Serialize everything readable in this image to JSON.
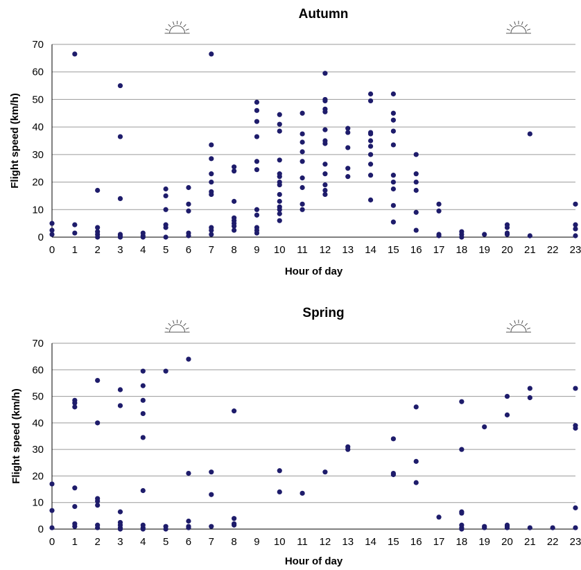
{
  "chart_data": [
    {
      "type": "scatter",
      "title": "Autumn",
      "xlabel": "Hour of day",
      "ylabel": "Flight speed (km/h)",
      "xlim": [
        0,
        23
      ],
      "ylim": [
        0,
        70
      ],
      "x_ticks": [
        "0",
        "1",
        "2",
        "3",
        "4",
        "5",
        "6",
        "7",
        "8",
        "9",
        "10",
        "11",
        "12",
        "13",
        "14",
        "15",
        "16",
        "17",
        "18",
        "19",
        "20",
        "21",
        "22",
        "23"
      ],
      "y_ticks": [
        "0",
        "10",
        "20",
        "30",
        "40",
        "50",
        "60",
        "70"
      ],
      "grid": true,
      "sun_marker_hours": [
        5.5,
        20.5
      ],
      "marker_color": "#1e1c6b",
      "points": [
        [
          0,
          5
        ],
        [
          0,
          2.5
        ],
        [
          0,
          1
        ],
        [
          1,
          66.5
        ],
        [
          1,
          4.5
        ],
        [
          1,
          1.5
        ],
        [
          2,
          17
        ],
        [
          2,
          3.5
        ],
        [
          2,
          2
        ],
        [
          2,
          1
        ],
        [
          2,
          0
        ],
        [
          3,
          55
        ],
        [
          3,
          36.5
        ],
        [
          3,
          14
        ],
        [
          3,
          1
        ],
        [
          3,
          0.5
        ],
        [
          3,
          0
        ],
        [
          4,
          1.5
        ],
        [
          4,
          0.5
        ],
        [
          4,
          0
        ],
        [
          5,
          17.5
        ],
        [
          5,
          15
        ],
        [
          5,
          10
        ],
        [
          5,
          4.5
        ],
        [
          5,
          3.5
        ],
        [
          5,
          0
        ],
        [
          6,
          18
        ],
        [
          6,
          12
        ],
        [
          6,
          9.5
        ],
        [
          6,
          1.5
        ],
        [
          6,
          0.5
        ],
        [
          7,
          66.5
        ],
        [
          7,
          33.5
        ],
        [
          7,
          28.5
        ],
        [
          7,
          23
        ],
        [
          7,
          20
        ],
        [
          7,
          16.5
        ],
        [
          7,
          15.5
        ],
        [
          7,
          3.5
        ],
        [
          7,
          2.5
        ],
        [
          7,
          1
        ],
        [
          8,
          25.5
        ],
        [
          8,
          24
        ],
        [
          8,
          13
        ],
        [
          8,
          7
        ],
        [
          8,
          6
        ],
        [
          8,
          5
        ],
        [
          8,
          4
        ],
        [
          8,
          2.5
        ],
        [
          9,
          49
        ],
        [
          9,
          46
        ],
        [
          9,
          42
        ],
        [
          9,
          36.5
        ],
        [
          9,
          27.5
        ],
        [
          9,
          24.5
        ],
        [
          9,
          10
        ],
        [
          9,
          8
        ],
        [
          9,
          3.5
        ],
        [
          9,
          2.5
        ],
        [
          9,
          1.5
        ],
        [
          10,
          44.5
        ],
        [
          10,
          41
        ],
        [
          10,
          38.5
        ],
        [
          10,
          28
        ],
        [
          10,
          23
        ],
        [
          10,
          22
        ],
        [
          10,
          20
        ],
        [
          10,
          19
        ],
        [
          10,
          15.5
        ],
        [
          10,
          13
        ],
        [
          10,
          11
        ],
        [
          10,
          10
        ],
        [
          10,
          8.5
        ],
        [
          10,
          6
        ],
        [
          11,
          45
        ],
        [
          11,
          37.5
        ],
        [
          11,
          34.5
        ],
        [
          11,
          31
        ],
        [
          11,
          27.5
        ],
        [
          11,
          21.5
        ],
        [
          11,
          18
        ],
        [
          11,
          12
        ],
        [
          11,
          10
        ],
        [
          12,
          59.5
        ],
        [
          12,
          50
        ],
        [
          12,
          49.5
        ],
        [
          12,
          46.5
        ],
        [
          12,
          45.5
        ],
        [
          12,
          39
        ],
        [
          12,
          35
        ],
        [
          12,
          34
        ],
        [
          12,
          26.5
        ],
        [
          12,
          23
        ],
        [
          12,
          19
        ],
        [
          12,
          17
        ],
        [
          12,
          15.5
        ],
        [
          13,
          39.5
        ],
        [
          13,
          38
        ],
        [
          13,
          32.5
        ],
        [
          13,
          25
        ],
        [
          13,
          22
        ],
        [
          14,
          52
        ],
        [
          14,
          49.5
        ],
        [
          14,
          38
        ],
        [
          14,
          37.5
        ],
        [
          14,
          35
        ],
        [
          14,
          33
        ],
        [
          14,
          30
        ],
        [
          14,
          26.5
        ],
        [
          14,
          22.5
        ],
        [
          14,
          13.5
        ],
        [
          15,
          52
        ],
        [
          15,
          45
        ],
        [
          15,
          42.5
        ],
        [
          15,
          38.5
        ],
        [
          15,
          33.5
        ],
        [
          15,
          22.5
        ],
        [
          15,
          20
        ],
        [
          15,
          17.5
        ],
        [
          15,
          11.5
        ],
        [
          15,
          5.5
        ],
        [
          16,
          30
        ],
        [
          16,
          23
        ],
        [
          16,
          20
        ],
        [
          16,
          17
        ],
        [
          16,
          9
        ],
        [
          16,
          2.5
        ],
        [
          17,
          12
        ],
        [
          17,
          9.5
        ],
        [
          17,
          1
        ],
        [
          17,
          0.5
        ],
        [
          18,
          2
        ],
        [
          18,
          1
        ],
        [
          18,
          0
        ],
        [
          19,
          1
        ],
        [
          20,
          4.5
        ],
        [
          20,
          3.5
        ],
        [
          20,
          1.5
        ],
        [
          20,
          1
        ],
        [
          21,
          37.5
        ],
        [
          21,
          0.5
        ],
        [
          23,
          12
        ],
        [
          23,
          4.5
        ],
        [
          23,
          3
        ],
        [
          23,
          0.5
        ]
      ]
    },
    {
      "type": "scatter",
      "title": "Spring",
      "xlabel": "Hour of day",
      "ylabel": "Flight speed (km/h)",
      "xlim": [
        0,
        23
      ],
      "ylim": [
        0,
        70
      ],
      "x_ticks": [
        "0",
        "1",
        "2",
        "3",
        "4",
        "5",
        "6",
        "7",
        "8",
        "9",
        "10",
        "11",
        "12",
        "13",
        "14",
        "15",
        "16",
        "17",
        "18",
        "19",
        "20",
        "21",
        "22",
        "23"
      ],
      "y_ticks": [
        "0",
        "10",
        "20",
        "30",
        "40",
        "50",
        "60",
        "70"
      ],
      "grid": true,
      "sun_marker_hours": [
        5.5,
        20.5
      ],
      "marker_color": "#1e1c6b",
      "points": [
        [
          0,
          17
        ],
        [
          0,
          7
        ],
        [
          0,
          0.5
        ],
        [
          1,
          48.5
        ],
        [
          1,
          47.5
        ],
        [
          1,
          46
        ],
        [
          1,
          15.5
        ],
        [
          1,
          8.5
        ],
        [
          1,
          2
        ],
        [
          1,
          1
        ],
        [
          2,
          56
        ],
        [
          2,
          40
        ],
        [
          2,
          11.5
        ],
        [
          2,
          10.5
        ],
        [
          2,
          9
        ],
        [
          2,
          1.5
        ],
        [
          2,
          0.5
        ],
        [
          3,
          52.5
        ],
        [
          3,
          46.5
        ],
        [
          3,
          6.5
        ],
        [
          3,
          2.5
        ],
        [
          3,
          1.5
        ],
        [
          3,
          0.5
        ],
        [
          3,
          0
        ],
        [
          4,
          59.5
        ],
        [
          4,
          54
        ],
        [
          4,
          48.5
        ],
        [
          4,
          43.5
        ],
        [
          4,
          34.5
        ],
        [
          4,
          14.5
        ],
        [
          4,
          1.5
        ],
        [
          4,
          0.5
        ],
        [
          4,
          0
        ],
        [
          5,
          59.5
        ],
        [
          5,
          1
        ],
        [
          5,
          0
        ],
        [
          6,
          64
        ],
        [
          6,
          21
        ],
        [
          6,
          3
        ],
        [
          6,
          1
        ],
        [
          6,
          0.5
        ],
        [
          7,
          21.5
        ],
        [
          7,
          13
        ],
        [
          7,
          1
        ],
        [
          8,
          44.5
        ],
        [
          8,
          4
        ],
        [
          8,
          2
        ],
        [
          8,
          1.5
        ],
        [
          10,
          22
        ],
        [
          10,
          14
        ],
        [
          11,
          13.5
        ],
        [
          12,
          21.5
        ],
        [
          13,
          31
        ],
        [
          13,
          30
        ],
        [
          15,
          34
        ],
        [
          15,
          21
        ],
        [
          15,
          20.5
        ],
        [
          16,
          46
        ],
        [
          16,
          25.5
        ],
        [
          16,
          17.5
        ],
        [
          17,
          4.5
        ],
        [
          18,
          48
        ],
        [
          18,
          30
        ],
        [
          18,
          6.5
        ],
        [
          18,
          6
        ],
        [
          18,
          1.5
        ],
        [
          18,
          0.5
        ],
        [
          18,
          0
        ],
        [
          19,
          38.5
        ],
        [
          19,
          1
        ],
        [
          19,
          0.5
        ],
        [
          20,
          50
        ],
        [
          20,
          43
        ],
        [
          20,
          1.5
        ],
        [
          20,
          1
        ],
        [
          20,
          0.5
        ],
        [
          21,
          53
        ],
        [
          21,
          49.5
        ],
        [
          21,
          0.5
        ],
        [
          22,
          0.5
        ],
        [
          23,
          53
        ],
        [
          23,
          39
        ],
        [
          23,
          38
        ],
        [
          23,
          8
        ],
        [
          23,
          0.5
        ]
      ]
    }
  ]
}
